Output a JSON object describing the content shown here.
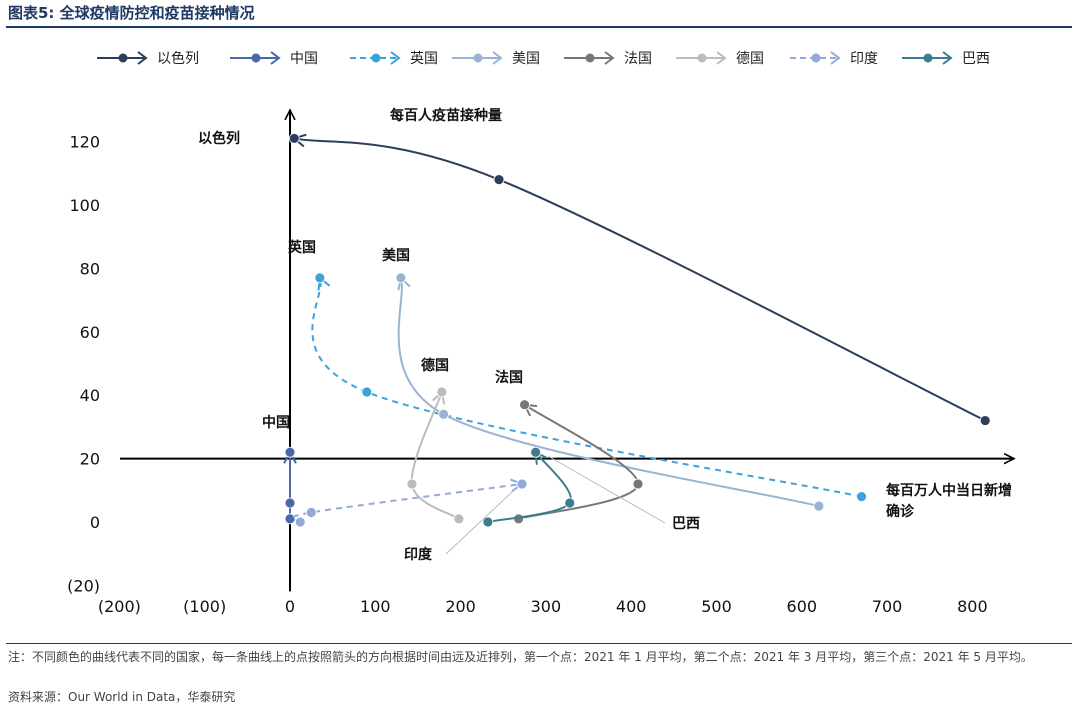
{
  "figure": {
    "title": "图表5:  全球疫情防控和疫苗接种情况",
    "note": "注：不同颜色的曲线代表不同的国家，每一条曲线上的点按照箭头的方向根据时间由远及近排列，第一个点：2021 年 1 月平均，第二个点：2021 年 3 月平均，第三个点：2021 年 5 月平均。",
    "source": "资料来源：Our World in Data，华泰研究"
  },
  "chart_data": {
    "type": "scatter",
    "xlabel": "每百万人中当日新增确诊",
    "ylabel": "每百人疫苗接种量",
    "xlim": [
      -200,
      800
    ],
    "ylim": [
      -20,
      120
    ],
    "x_ticks": [
      "(200)",
      "(100)",
      "0",
      "100",
      "200",
      "300",
      "400",
      "500",
      "600",
      "700",
      "800"
    ],
    "y_ticks": [
      "(20)",
      "0",
      "20",
      "40",
      "60",
      "80",
      "100",
      "120"
    ],
    "grid": false,
    "legend_position": "top",
    "series": [
      {
        "name": "以色列",
        "label": "以色列",
        "color": "#2c3e5c",
        "dash": false,
        "points": [
          [
            815,
            32
          ],
          [
            245,
            108
          ],
          [
            5,
            121
          ]
        ]
      },
      {
        "name": "中国",
        "label": "中国",
        "color": "#4a68a8",
        "dash": false,
        "points": [
          [
            0,
            1
          ],
          [
            0,
            6
          ],
          [
            0,
            22
          ]
        ]
      },
      {
        "name": "英国",
        "label": "英国",
        "color": "#3aa3dc",
        "dash": true,
        "points": [
          [
            670,
            8
          ],
          [
            90,
            41
          ],
          [
            35,
            77
          ]
        ]
      },
      {
        "name": "美国",
        "label": "美国",
        "color": "#9ab3d5",
        "dash": false,
        "points": [
          [
            620,
            5
          ],
          [
            180,
            34
          ],
          [
            130,
            77
          ]
        ]
      },
      {
        "name": "法国",
        "label": "法国",
        "color": "#777777",
        "dash": false,
        "points": [
          [
            268,
            1
          ],
          [
            408,
            12
          ],
          [
            275,
            37
          ]
        ]
      },
      {
        "name": "德国",
        "label": "德国",
        "color": "#bcbcbc",
        "dash": false,
        "points": [
          [
            198,
            1
          ],
          [
            143,
            12
          ],
          [
            178,
            41
          ]
        ]
      },
      {
        "name": "印度",
        "label": "印度",
        "color": "#93a9d8",
        "dash": true,
        "points": [
          [
            12,
            0
          ],
          [
            25,
            3
          ],
          [
            272,
            12
          ]
        ]
      },
      {
        "name": "巴西",
        "label": "巴西",
        "color": "#3b7d8f",
        "dash": false,
        "points": [
          [
            232,
            0
          ],
          [
            328,
            6
          ],
          [
            288,
            22
          ]
        ]
      }
    ]
  }
}
